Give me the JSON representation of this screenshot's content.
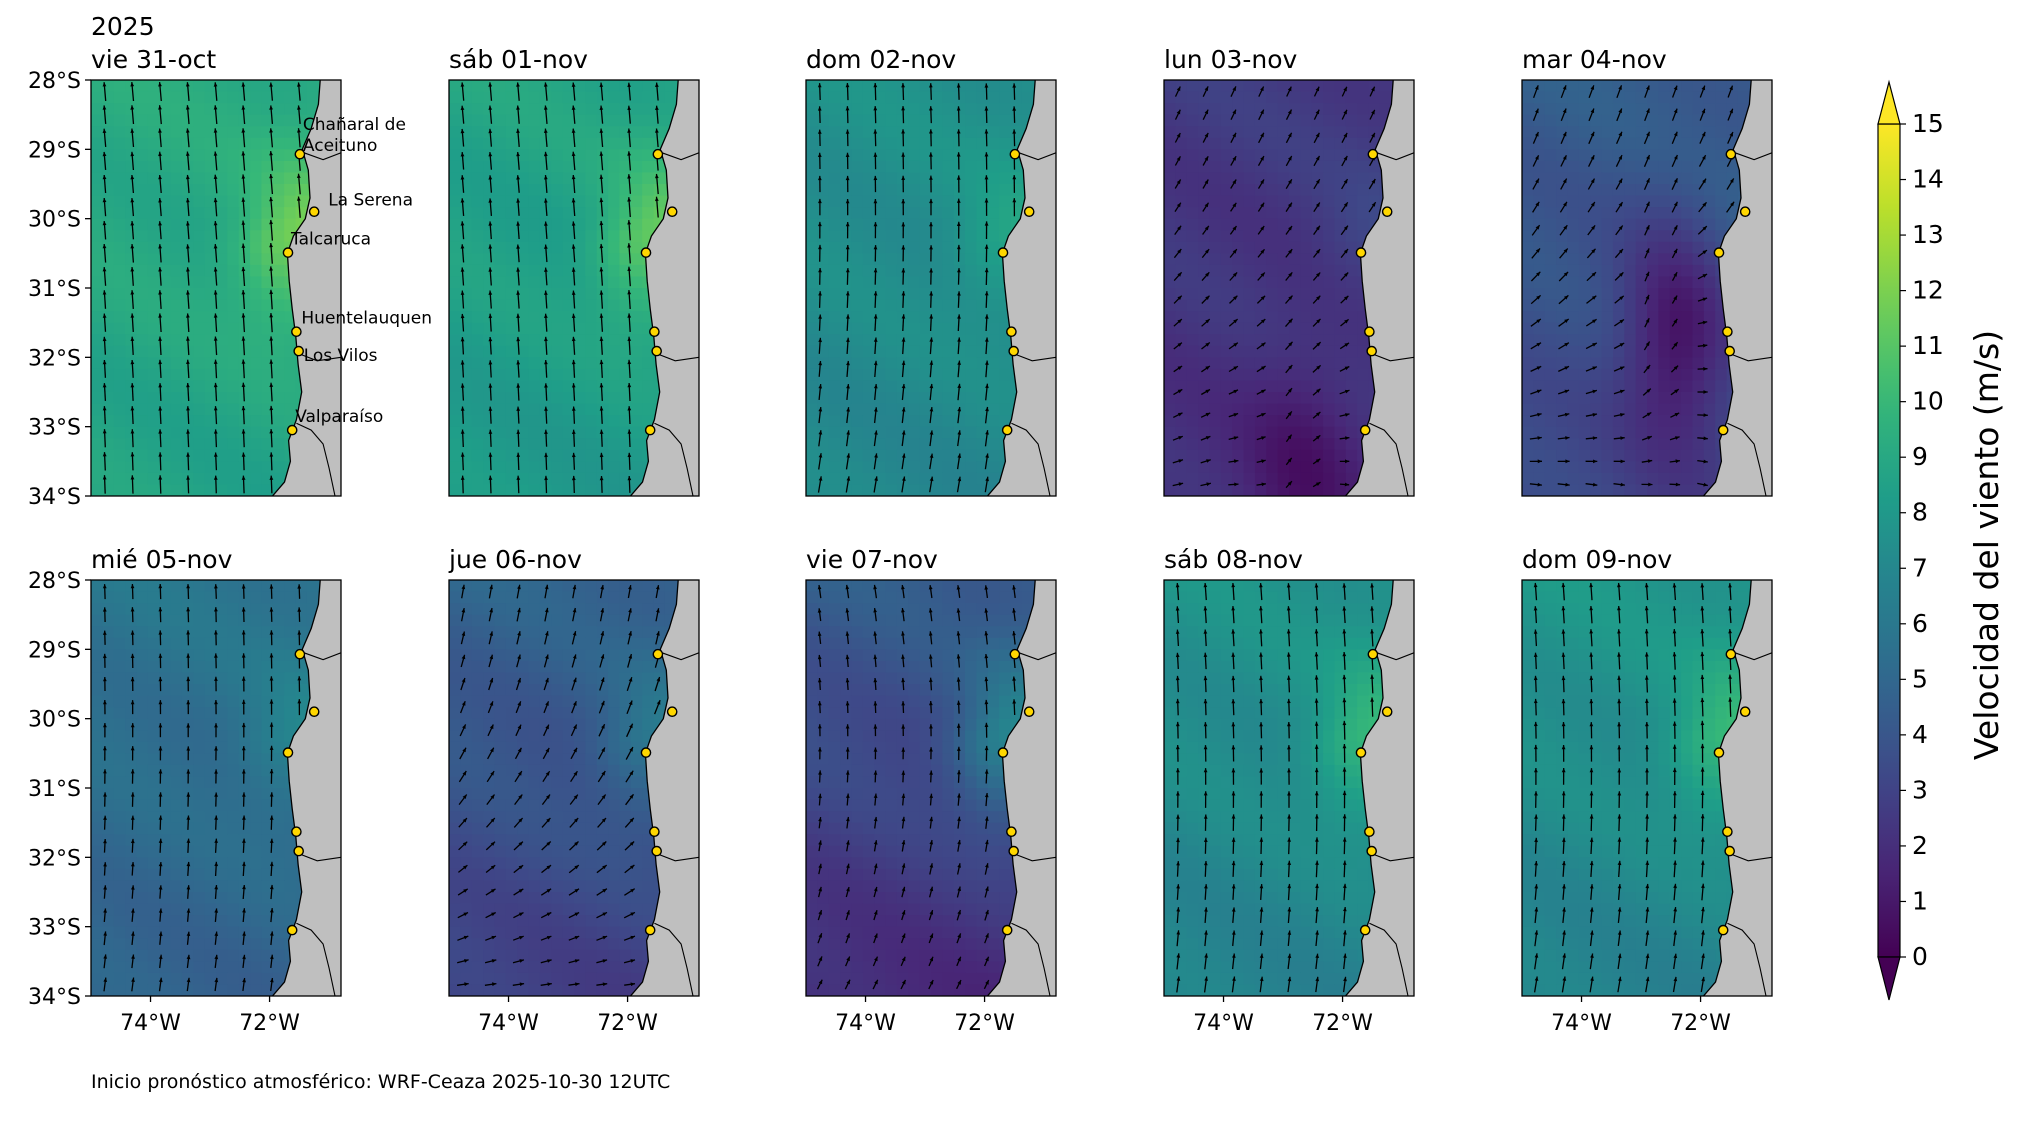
{
  "year_label": "2025",
  "panels": [
    {
      "title": "vie 31-oct",
      "field": {
        "base": 9.2,
        "coastBoost": 2.6,
        "southBoost": -0.5,
        "dir": 95,
        "dirSouth": 92
      }
    },
    {
      "title": "sáb 01-nov",
      "field": {
        "base": 8.8,
        "coastBoost": 2.6,
        "southBoost": -0.7,
        "dir": 95,
        "dirSouth": 92
      }
    },
    {
      "title": "dom 02-nov",
      "field": {
        "base": 7.6,
        "coastBoost": 1.2,
        "southBoost": -0.6,
        "dir": 92,
        "dirSouth": 80
      }
    },
    {
      "title": "lun 03-nov",
      "field": {
        "base": 2.6,
        "coastBoost": 0.6,
        "southBoost": -0.6,
        "dir": 65,
        "dirSouth": 10,
        "low": [
          0.55,
          0.95,
          1.2
        ]
      }
    },
    {
      "title": "mar 04-nov",
      "field": {
        "base": 4.4,
        "coastBoost": 0.4,
        "southBoost": -1.2,
        "dir": 70,
        "dirSouth": -10,
        "low": [
          0.62,
          0.62,
          3.0
        ]
      }
    },
    {
      "title": "mié 05-nov",
      "field": {
        "base": 5.9,
        "coastBoost": 1.2,
        "southBoost": -1.2,
        "dir": 92,
        "dirSouth": 82
      }
    },
    {
      "title": "jue 06-nov",
      "field": {
        "base": 4.8,
        "coastBoost": 1.8,
        "southBoost": -2.0,
        "dir": 80,
        "dirSouth": 5
      }
    },
    {
      "title": "vie 07-nov",
      "field": {
        "base": 4.4,
        "coastBoost": 3.2,
        "southBoost": -2.6,
        "dir": 98,
        "dirSouth": 62
      }
    },
    {
      "title": "sáb 08-nov",
      "field": {
        "base": 7.7,
        "coastBoost": 2.4,
        "southBoost": -1.0,
        "dir": 94,
        "dirSouth": 82
      }
    },
    {
      "title": "dom 09-nov",
      "field": {
        "base": 7.9,
        "coastBoost": 2.4,
        "southBoost": -1.2,
        "dir": 94,
        "dirSouth": 80
      }
    }
  ],
  "stations": [
    {
      "name": "Chañaral de Aceituno",
      "lat": -29.07,
      "lon": -71.49,
      "label_lines": [
        "Chañaral de",
        "Aceituno"
      ]
    },
    {
      "name": "La Serena",
      "lat": -29.9,
      "lon": -71.25,
      "label_lines": [
        "La Serena"
      ]
    },
    {
      "name": "Talcaruca",
      "lat": -30.49,
      "lon": -71.69,
      "label_lines": [
        "Talcaruca"
      ]
    },
    {
      "name": "Huentelauquen",
      "lat": -31.63,
      "lon": -71.55,
      "label_lines": [
        "Huentelauquen"
      ]
    },
    {
      "name": "Los Vilos",
      "lat": -31.91,
      "lon": -71.51,
      "label_lines": [
        "Los Vilos"
      ]
    },
    {
      "name": "Valparaíso",
      "lat": -33.05,
      "lon": -71.62,
      "label_lines": [
        "Valparaíso"
      ]
    }
  ],
  "y_ticks": [
    "28°S",
    "29°S",
    "30°S",
    "31°S",
    "32°S",
    "33°S",
    "34°S"
  ],
  "y_tick_values": [
    -28,
    -29,
    -30,
    -31,
    -32,
    -33,
    -34
  ],
  "x_ticks": [
    "74°W",
    "72°W"
  ],
  "x_tick_values": [
    -74,
    -72
  ],
  "lat_range": [
    -34,
    -28
  ],
  "lon_range": [
    -75,
    -70.8
  ],
  "colorbar": {
    "label": "Velocidad del viento (m/s)",
    "min": 0,
    "max": 15,
    "ticks": [
      "0",
      "1",
      "2",
      "3",
      "4",
      "5",
      "6",
      "7",
      "8",
      "9",
      "10",
      "11",
      "12",
      "13",
      "14",
      "15"
    ],
    "extend": "both",
    "colormap": "viridis"
  },
  "colors": {
    "land": "#bfbfbf",
    "station_fill": "#ffd700",
    "frame": "#000000"
  },
  "footer": "Inicio pronóstico atmosférico: WRF-Ceaza 2025-10-30 12UTC"
}
